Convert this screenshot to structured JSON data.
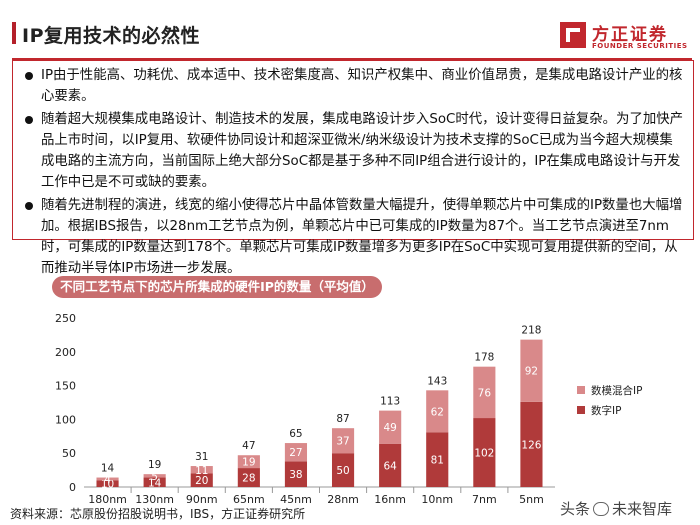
{
  "header": {
    "title": "IP复用技术的必然性",
    "logo_name": "方正证券",
    "logo_en": "FOUNDER SECURITIES"
  },
  "bullets": [
    "IP由于性能高、功耗优、成本适中、技术密集度高、知识产权集中、商业价值昂贵，是集成电路设计产业的核心要素。",
    "随着超大规模集成电路设计、制造技术的发展，集成电路设计步入SoC时代，设计变得日益复杂。为了加快产品上市时间，以IP复用、软硬件协同设计和超深亚微米/纳米级设计为技术支撑的SoC已成为当今超大规模集成电路的主流方向，当前国际上绝大部分SoC都是基于多种不同IP组合进行设计的，IP在集成电路设计与开发工作中已是不可或缺的要素。",
    "随着先进制程的演进，线宽的缩小使得芯片中晶体管数量大幅提升，使得单颗芯片中可集成的IP数量也大幅增加。根据IBS报告，以28nm工艺节点为例，单颗芯片中已可集成的IP数量为87个。当工艺节点演进至7nm时，可集成的IP数量达到178个。单颗芯片可集成IP数量增多为更多IP在SoC中实现可复用提供新的空间，从而推动半导体IP市场进一步发展。"
  ],
  "chart_data": {
    "type": "bar",
    "stacked": true,
    "title": "不同工艺节点下的芯片所集成的硬件IP的数量（平均值）",
    "categories": [
      "180nm",
      "130nm",
      "90nm",
      "65nm",
      "45nm",
      "28nm",
      "16nm",
      "10nm",
      "7nm",
      "5nm"
    ],
    "series": [
      {
        "name": "数字IP",
        "color": "#b03a3a",
        "values": [
          10,
          14,
          20,
          28,
          38,
          50,
          64,
          81,
          102,
          126
        ]
      },
      {
        "name": "数模混合IP",
        "color": "#d9898a",
        "values": [
          4,
          5,
          11,
          19,
          27,
          37,
          49,
          62,
          76,
          92
        ]
      }
    ],
    "totals": [
      14,
      19,
      31,
      47,
      65,
      87,
      113,
      143,
      178,
      218
    ],
    "ylim": [
      0,
      250
    ],
    "yticks": [
      0,
      50,
      100,
      150,
      200,
      250
    ],
    "legend_position": "right",
    "grid": false
  },
  "footer": {
    "source": "资料来源：芯原股份招股说明书，IBS，方正证券研究所",
    "watermark_left": "头条",
    "watermark_right": "未来智库"
  }
}
